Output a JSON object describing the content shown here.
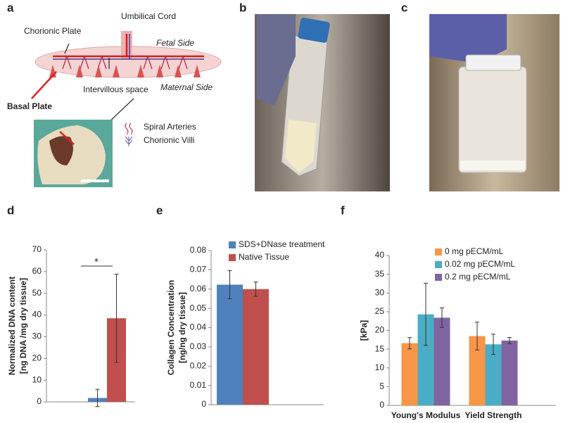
{
  "panel_labels": [
    "a",
    "b",
    "c",
    "d",
    "e",
    "f"
  ],
  "diagram": {
    "umbilical_cord": "Umbilical Cord",
    "chorionic_plate": "Chorionic Plate",
    "fetal_side": "Fetal Side",
    "intervillous_space": "Intervillous space",
    "maternal_side": "Maternal Side",
    "basal_plate": "Basal Plate",
    "spiral_arteries": "Spiral Arteries",
    "chorionic_villi": "Chorionic Villi"
  },
  "chart_data": [
    {
      "type": "bar",
      "ylabel": [
        "Normalized DNA content",
        "[ng DNA /mg dry tissue]"
      ],
      "categories": [
        null
      ],
      "series": [
        {
          "color": "#4f81bd",
          "values": [
            1.8
          ],
          "errors": [
            4
          ]
        },
        {
          "color": "#c0504d",
          "values": [
            38.5
          ],
          "errors": [
            20.3
          ]
        }
      ],
      "annotation": "*",
      "ylim": [
        0,
        70
      ],
      "yticks": [
        0,
        10,
        20,
        30,
        40,
        50,
        60,
        70
      ]
    },
    {
      "type": "bar",
      "ylabel": [
        "Collagen Concentration",
        "[ng/ng dry tissue]"
      ],
      "categories": [
        null
      ],
      "series": [
        {
          "name": "SDS+DNase treatment",
          "color": "#4f81bd",
          "values": [
            0.0623
          ],
          "errors": [
            0.0073
          ]
        },
        {
          "name": "Native Tissue",
          "color": "#c0504d",
          "values": [
            0.06
          ],
          "errors": [
            0.0037
          ]
        }
      ],
      "ylim": [
        0,
        0.08
      ],
      "yticks": [
        0,
        0.01,
        0.02,
        0.03,
        0.04,
        0.05,
        0.06,
        0.07,
        0.08
      ],
      "legend": "upper-left"
    },
    {
      "type": "bar",
      "ylabel": [
        "[kPa]"
      ],
      "categories": [
        "Young's Modulus",
        "Yield Strength"
      ],
      "series": [
        {
          "name": "0 mg pECM/mL",
          "color": "#f79646",
          "values": [
            16.6,
            18.5
          ],
          "errors": [
            1.5,
            3.7
          ]
        },
        {
          "name": "0.02 mg pECM/mL",
          "color": "#4bacc6",
          "values": [
            24.3,
            16.3
          ],
          "errors": [
            8.3,
            2.7
          ]
        },
        {
          "name": "0.2 mg pECM/mL",
          "color": "#8064a2",
          "values": [
            23.4,
            17.3
          ],
          "errors": [
            2.6,
            0.8
          ]
        }
      ],
      "ylim": [
        0,
        40
      ],
      "yticks": [
        0,
        5,
        10,
        15,
        20,
        25,
        30,
        35,
        40
      ],
      "legend": "upper-right"
    }
  ]
}
